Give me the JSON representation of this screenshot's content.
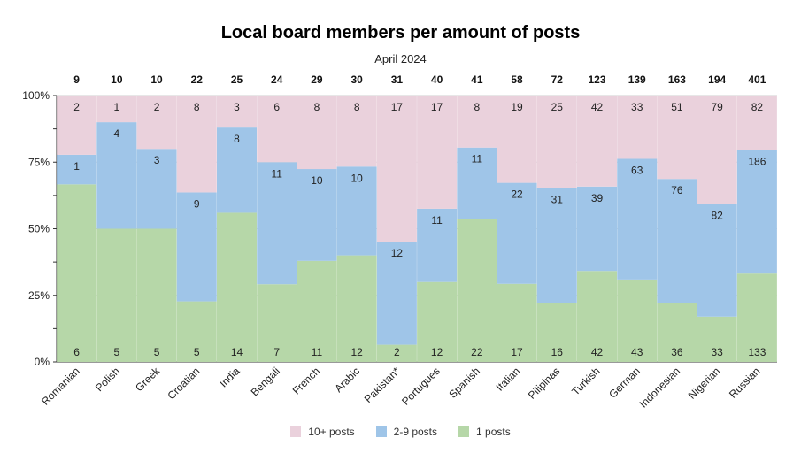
{
  "chart_data": {
    "type": "bar",
    "stacked": true,
    "normalized": true,
    "title": "Local board members per amount of posts",
    "subtitle": "April 2024",
    "categories": [
      "Romanian",
      "Polish",
      "Greek",
      "Croatian",
      "India",
      "Bengali",
      "French",
      "Arabic",
      "Pakistan*",
      "Portugues",
      "Spanish",
      "Italian",
      "Pilipinas",
      "Turkish",
      "German",
      "Indonesian",
      "Nigerian",
      "Russian"
    ],
    "totals": [
      9,
      10,
      10,
      22,
      25,
      24,
      29,
      30,
      31,
      40,
      41,
      58,
      72,
      123,
      139,
      163,
      194,
      401
    ],
    "series": [
      {
        "name": "1 posts",
        "color": "#b6d7a8",
        "values": [
          6,
          5,
          5,
          5,
          14,
          7,
          11,
          12,
          2,
          12,
          22,
          17,
          16,
          42,
          43,
          36,
          33,
          133
        ]
      },
      {
        "name": "2-9 posts",
        "color": "#9fc5e8",
        "values": [
          1,
          4,
          3,
          9,
          8,
          11,
          10,
          10,
          12,
          11,
          11,
          22,
          31,
          39,
          63,
          76,
          82,
          186
        ]
      },
      {
        "name": "10+ posts",
        "color": "#ead1dc",
        "values": [
          2,
          1,
          2,
          8,
          3,
          6,
          8,
          8,
          17,
          17,
          8,
          19,
          25,
          42,
          33,
          51,
          79,
          82
        ]
      }
    ],
    "yticks": [
      "0%",
      "25%",
      "50%",
      "75%",
      "100%"
    ],
    "ylim": [
      0,
      1
    ],
    "grid": true,
    "legend_position": "bottom",
    "legend_order": [
      "10+ posts",
      "2-9 posts",
      "1 posts"
    ]
  }
}
